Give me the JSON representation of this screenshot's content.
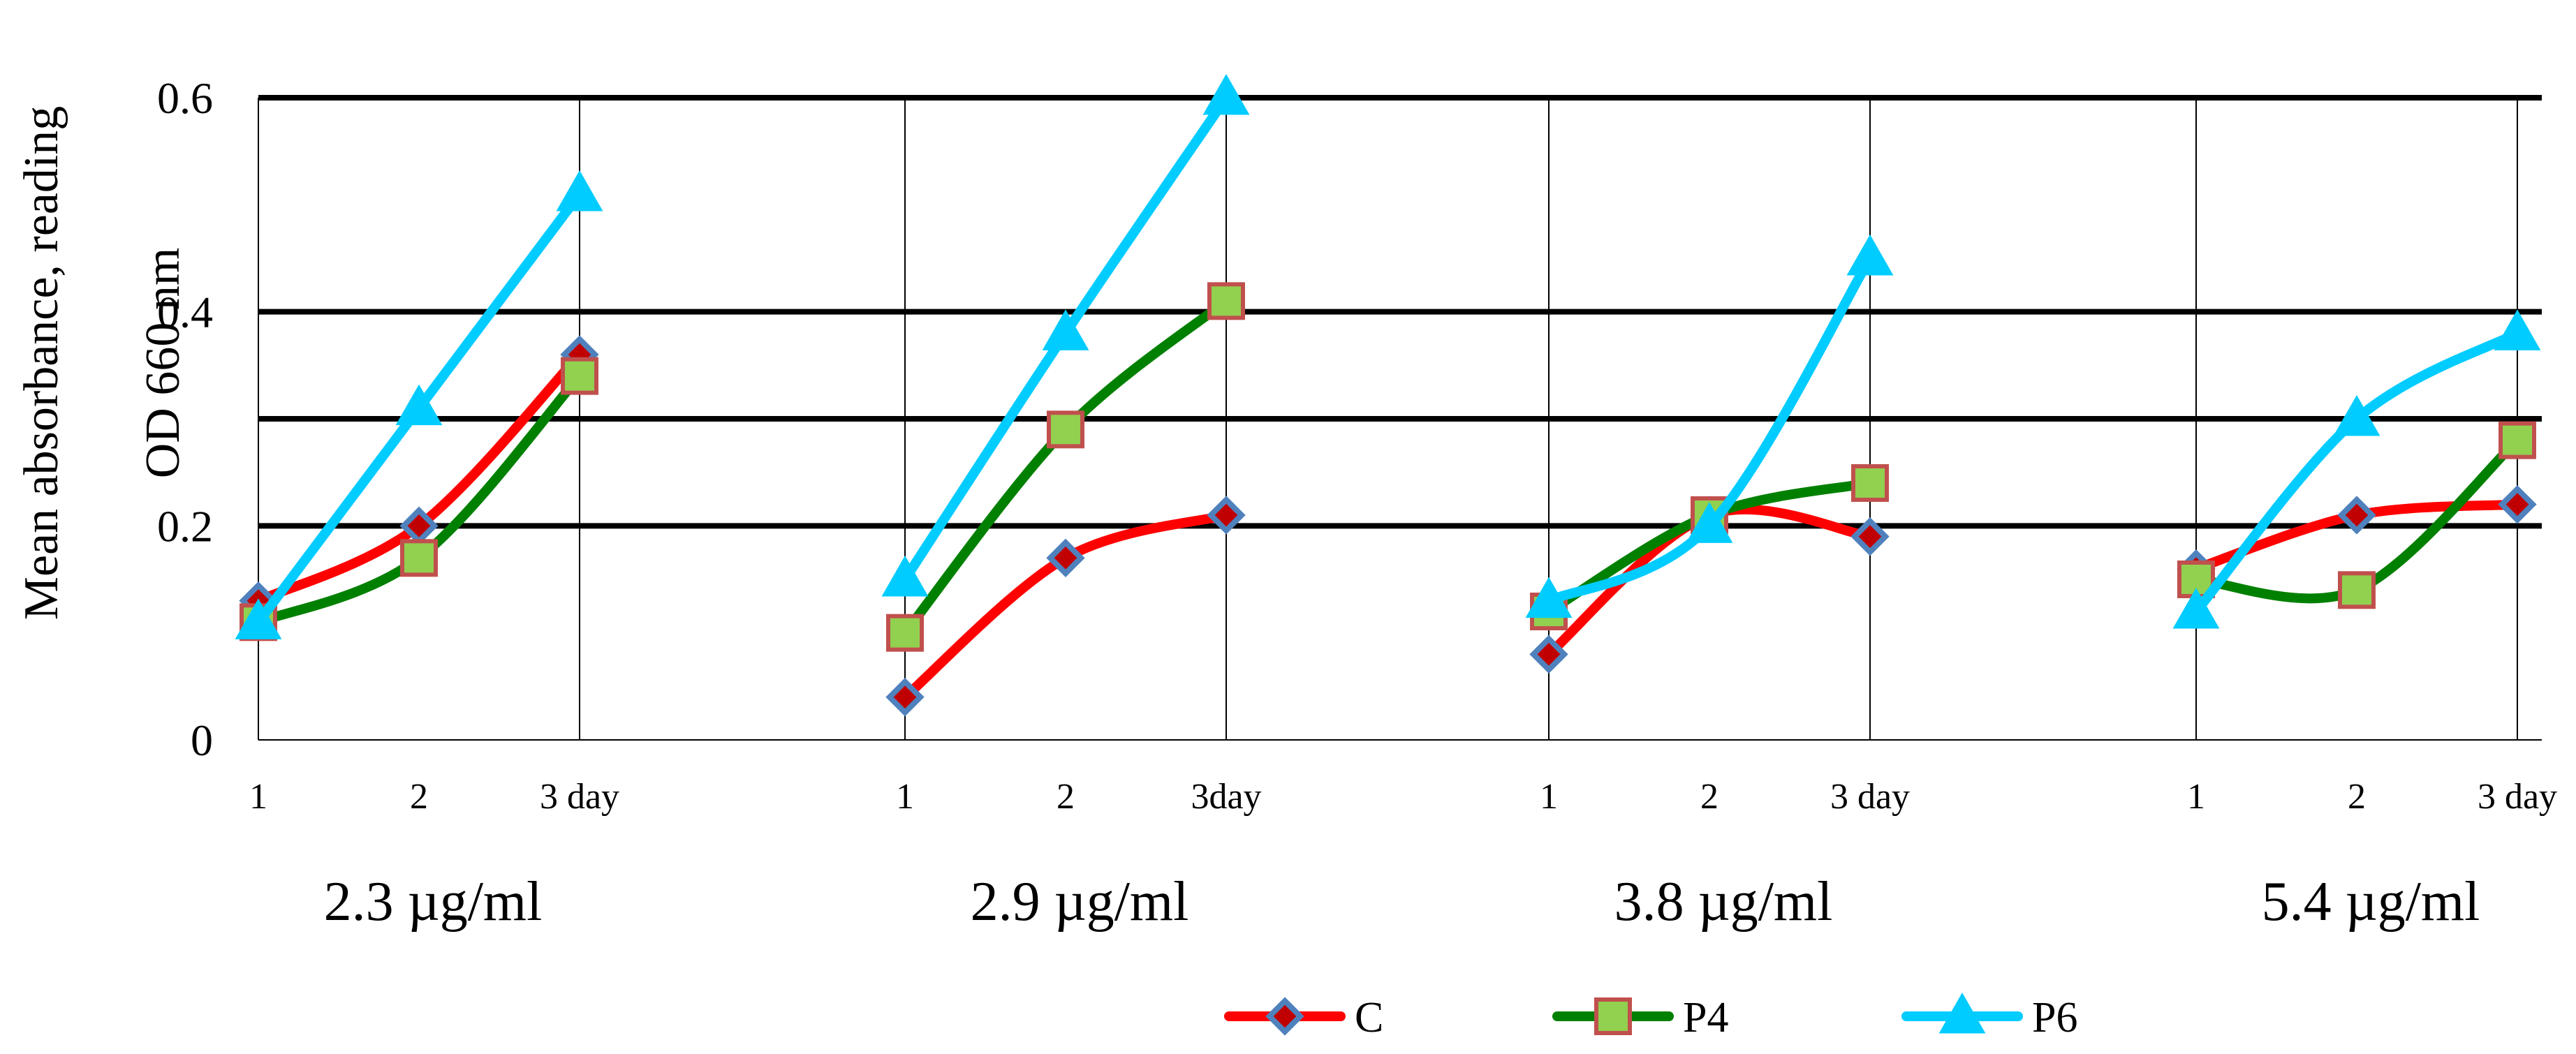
{
  "chart_data": {
    "type": "line",
    "ylabel_lines": [
      "Mean absorbance, reading",
      "OD 660 nm"
    ],
    "ylim": [
      0,
      0.6
    ],
    "yticks": [
      0,
      0.2,
      0.4,
      0.6
    ],
    "ytick_labels": [
      "0",
      "0.2",
      "0.4",
      "0.6"
    ],
    "hlines": [
      0.2,
      0.3,
      0.4,
      0.6
    ],
    "groups": [
      {
        "label": "2.3 µg/ml",
        "x": [
          "1",
          "2",
          "3 day"
        ]
      },
      {
        "label": "2.9 µg/ml",
        "x": [
          "1",
          "2",
          "3day"
        ]
      },
      {
        "label": "3.8 µg/ml",
        "x": [
          "1",
          "2",
          "3 day"
        ]
      },
      {
        "label": "5.4 µg/ml",
        "x": [
          "1",
          "2",
          "3 day"
        ]
      }
    ],
    "series": [
      {
        "name": "C",
        "color": "#ff0000",
        "marker": "diamond",
        "marker_fill": "#c00000",
        "marker_edge": "#4f81bd",
        "values": [
          [
            0.13,
            0.2,
            0.36
          ],
          [
            0.04,
            0.17,
            0.21
          ],
          [
            0.08,
            0.21,
            0.19
          ],
          [
            0.16,
            0.21,
            0.22
          ]
        ]
      },
      {
        "name": "P4",
        "color": "#008000",
        "marker": "square",
        "marker_fill": "#92d050",
        "marker_edge": "#c0504d",
        "values": [
          [
            0.11,
            0.17,
            0.34
          ],
          [
            0.1,
            0.29,
            0.41
          ],
          [
            0.12,
            0.21,
            0.24
          ],
          [
            0.15,
            0.14,
            0.28
          ]
        ]
      },
      {
        "name": "P6",
        "color": "#00ccff",
        "marker": "triangle",
        "marker_fill": "#00ccff",
        "marker_edge": "#00ccff",
        "values": [
          [
            0.11,
            0.31,
            0.51
          ],
          [
            0.15,
            0.38,
            0.6
          ],
          [
            0.13,
            0.2,
            0.45
          ],
          [
            0.12,
            0.3,
            0.38
          ]
        ]
      }
    ],
    "legend": {
      "position": "bottom",
      "entries": [
        "C",
        "P4",
        "P6"
      ]
    }
  }
}
